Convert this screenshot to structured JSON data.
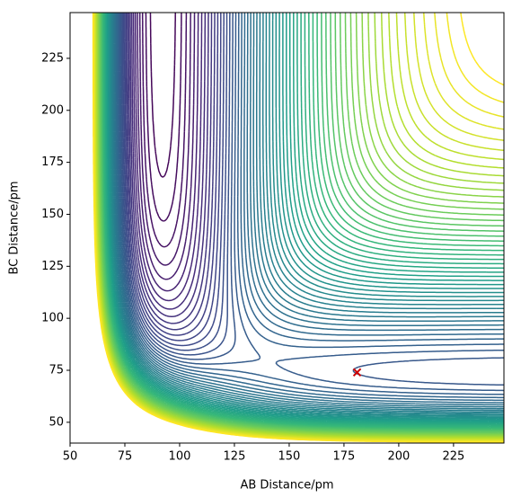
{
  "chart_data": {
    "type": "contour",
    "xlabel": "AB Distance/pm",
    "ylabel": "BC Distance/pm",
    "xlim": [
      50,
      248
    ],
    "ylim": [
      40,
      247
    ],
    "xticks": [
      50,
      75,
      100,
      125,
      150,
      175,
      200,
      225
    ],
    "yticks": [
      50,
      75,
      100,
      125,
      150,
      175,
      200,
      225
    ],
    "colormap": "viridis",
    "series": [
      {
        "color": "#cc0000",
        "x": [
          181
        ],
        "y": [
          74
        ]
      }
    ]
  }
}
